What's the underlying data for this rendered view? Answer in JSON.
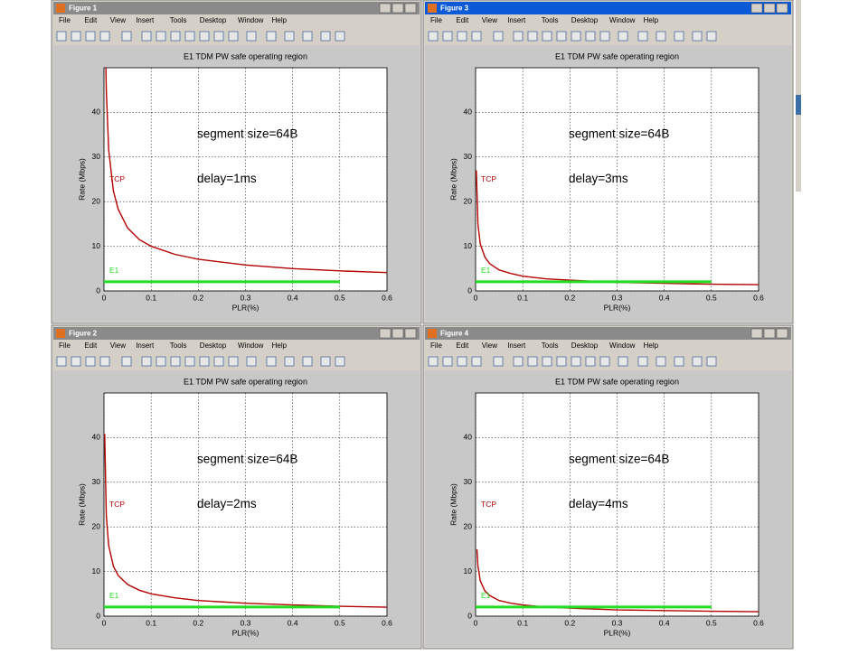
{
  "menu": [
    "File",
    "Edit",
    "View",
    "Insert",
    "Tools",
    "Desktop",
    "Window",
    "Help"
  ],
  "windows": [
    {
      "title": "Figure 1",
      "active": false
    },
    {
      "title": "Figure 3",
      "active": true
    },
    {
      "title": "Figure 2",
      "active": false
    },
    {
      "title": "Figure 4",
      "active": false
    }
  ],
  "chart_data": [
    {
      "type": "line",
      "title": "E1 TDM PW safe operating region",
      "x_label": "PLR(%)",
      "y_label": "Rate (Mbps)",
      "annotations": [
        "segment size=64B",
        "delay=1ms"
      ],
      "xlim": [
        0,
        0.6
      ],
      "ylim": [
        0,
        50
      ],
      "xticks": [
        0,
        0.1,
        0.2,
        0.3,
        0.4,
        0.5,
        0.6
      ],
      "yticks": [
        0,
        10,
        20,
        30,
        40
      ],
      "grid": true,
      "series": [
        {
          "name": "TCP",
          "color": "#b40000",
          "x": [
            0.004,
            0.005,
            0.01,
            0.02,
            0.03,
            0.05,
            0.075,
            0.1,
            0.15,
            0.2,
            0.3,
            0.4,
            0.5,
            0.6
          ],
          "values": [
            50,
            44.7,
            31.6,
            22.4,
            18.3,
            14.1,
            11.5,
            10,
            8.2,
            7.1,
            5.8,
            5.0,
            4.5,
            4.1
          ]
        },
        {
          "name": "E1",
          "color": "#22dd22",
          "x": [
            0,
            0.5
          ],
          "values": [
            2.048,
            2.048
          ]
        }
      ]
    },
    {
      "type": "line",
      "title": "E1 TDM PW safe operating region",
      "x_label": "PLR(%)",
      "y_label": "Rate (Mbps)",
      "annotations": [
        "segment size=64B",
        "delay=3ms"
      ],
      "xlim": [
        0,
        0.6
      ],
      "ylim": [
        0,
        50
      ],
      "xticks": [
        0,
        0.1,
        0.2,
        0.3,
        0.4,
        0.5,
        0.6
      ],
      "yticks": [
        0,
        10,
        20,
        30,
        40
      ],
      "grid": true,
      "series": [
        {
          "name": "TCP",
          "color": "#b40000",
          "x": [
            0.0015,
            0.005,
            0.01,
            0.02,
            0.03,
            0.05,
            0.075,
            0.1,
            0.15,
            0.2,
            0.3,
            0.4,
            0.5,
            0.6
          ],
          "values": [
            27,
            14.9,
            10.5,
            7.5,
            6.1,
            4.7,
            3.9,
            3.3,
            2.7,
            2.4,
            1.9,
            1.7,
            1.5,
            1.4
          ]
        },
        {
          "name": "E1",
          "color": "#22dd22",
          "x": [
            0,
            0.5
          ],
          "values": [
            2.048,
            2.048
          ]
        }
      ]
    },
    {
      "type": "line",
      "title": "E1 TDM PW safe operating region",
      "x_label": "PLR(%)",
      "y_label": "Rate (Mbps)",
      "annotations": [
        "segment size=64B",
        "delay=2ms"
      ],
      "xlim": [
        0,
        0.6
      ],
      "ylim": [
        0,
        50
      ],
      "xticks": [
        0,
        0.1,
        0.2,
        0.3,
        0.4,
        0.5,
        0.6
      ],
      "yticks": [
        0,
        10,
        20,
        30,
        40
      ],
      "grid": true,
      "series": [
        {
          "name": "TCP",
          "color": "#b40000",
          "x": [
            0.0015,
            0.005,
            0.01,
            0.02,
            0.03,
            0.05,
            0.075,
            0.1,
            0.15,
            0.2,
            0.3,
            0.4,
            0.5,
            0.6
          ],
          "values": [
            40.8,
            22.4,
            15.8,
            11.2,
            9.1,
            7.1,
            5.8,
            5,
            4.1,
            3.5,
            2.9,
            2.5,
            2.2,
            2.0
          ]
        },
        {
          "name": "E1",
          "color": "#22dd22",
          "x": [
            0,
            0.5
          ],
          "values": [
            2.048,
            2.048
          ]
        }
      ]
    },
    {
      "type": "line",
      "title": "E1 TDM PW safe operating region",
      "x_label": "PLR(%)",
      "y_label": "Rate (Mbps)",
      "annotations": [
        "segment size=64B",
        "delay=4ms"
      ],
      "xlim": [
        0,
        0.6
      ],
      "ylim": [
        0,
        50
      ],
      "xticks": [
        0,
        0.1,
        0.2,
        0.3,
        0.4,
        0.5,
        0.6
      ],
      "yticks": [
        0,
        10,
        20,
        30,
        40
      ],
      "grid": true,
      "series": [
        {
          "name": "TCP",
          "color": "#b40000",
          "x": [
            0.0028,
            0.005,
            0.01,
            0.02,
            0.03,
            0.05,
            0.075,
            0.1,
            0.15,
            0.2,
            0.3,
            0.4,
            0.5,
            0.6
          ],
          "values": [
            15,
            11.2,
            7.9,
            5.6,
            4.6,
            3.5,
            2.9,
            2.5,
            2.0,
            1.8,
            1.4,
            1.25,
            1.1,
            1.0
          ]
        },
        {
          "name": "E1",
          "color": "#22dd22",
          "x": [
            0,
            0.5
          ],
          "values": [
            2.048,
            2.048
          ]
        }
      ]
    }
  ]
}
